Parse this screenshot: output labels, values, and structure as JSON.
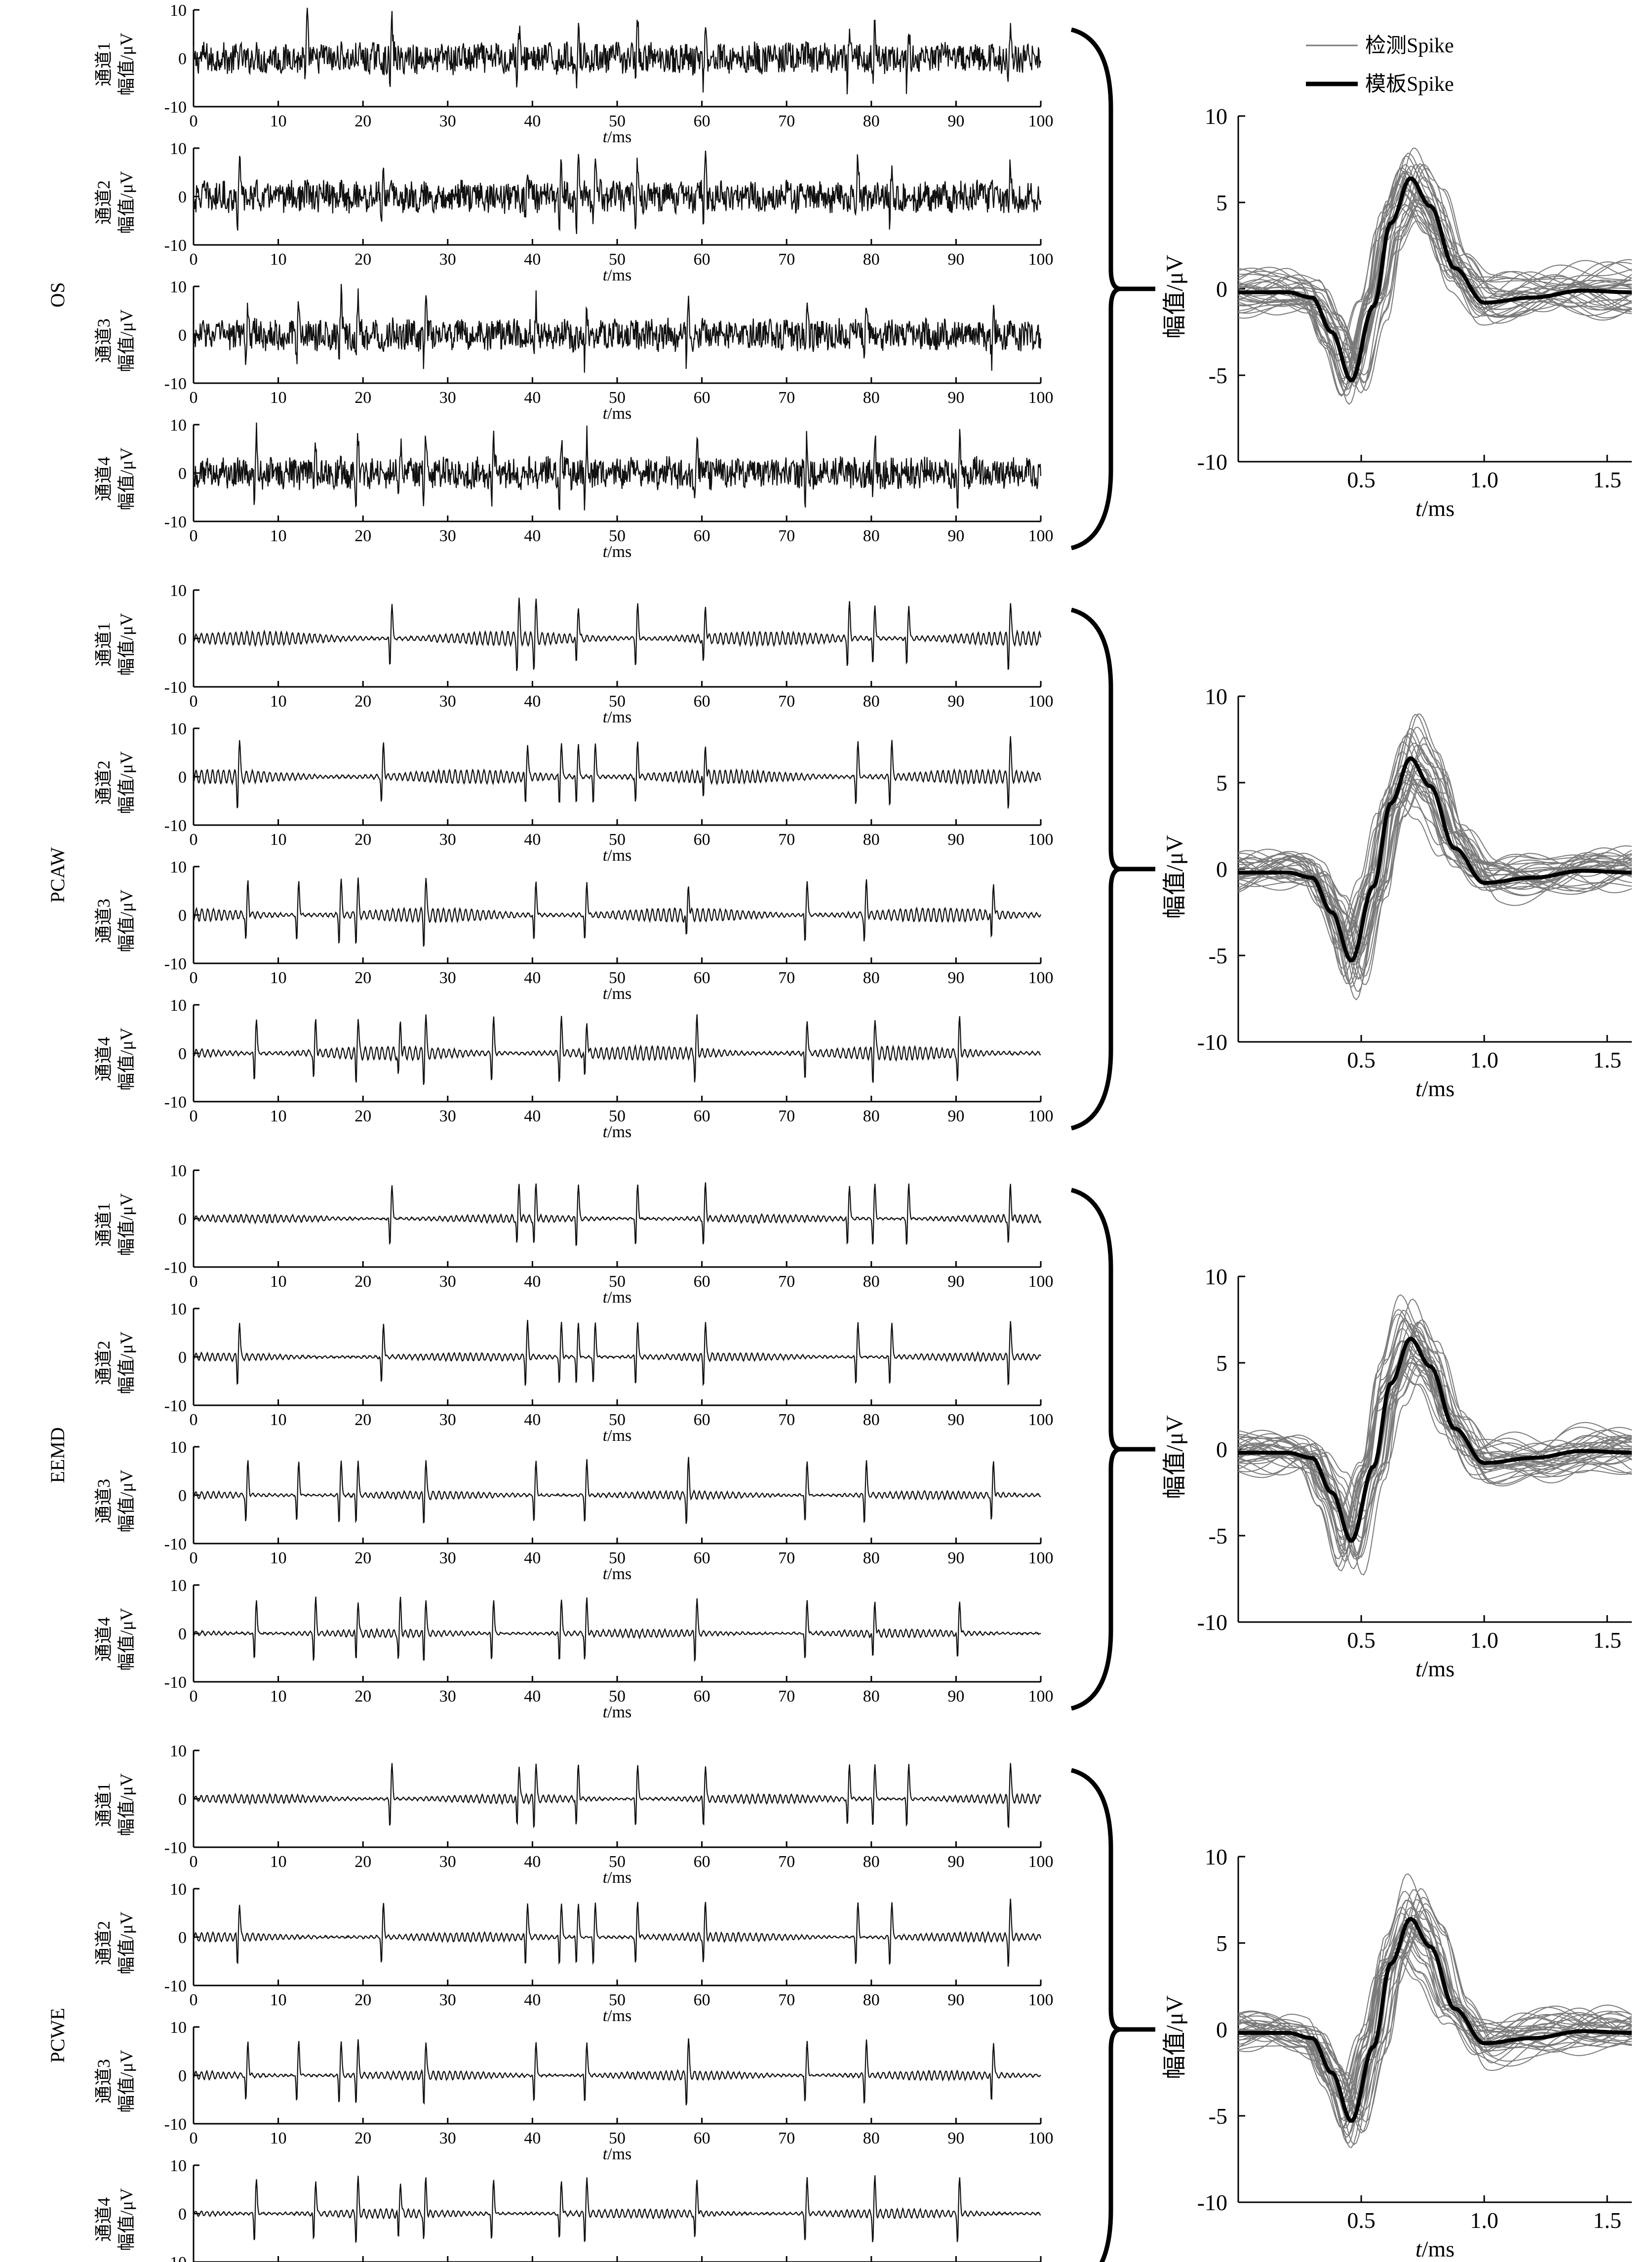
{
  "figure": {
    "legend": {
      "detected_label": "检测Spike",
      "template_label": "模板Spike"
    },
    "x_unit": "/ms",
    "x_symbol": "t",
    "signal_ylabel": "幅值/μV",
    "spike_ylabel": "幅值/μV",
    "colors": {
      "signal": "#111111",
      "detected": "#7a7a7a",
      "template": "#000000",
      "axis": "#000000"
    }
  },
  "chart_data": [
    {
      "type": "line",
      "method": "OS",
      "signal_panels": {
        "x_range": [
          0,
          100
        ],
        "y_range": [
          -10,
          10
        ],
        "x_ticks": [
          0,
          10,
          20,
          30,
          40,
          50,
          60,
          70,
          80,
          90,
          100
        ],
        "y_ticks": [
          10,
          0,
          -10
        ],
        "channels": [
          "通道1",
          "通道2",
          "通道3",
          "通道4"
        ],
        "noise_amplitude_uv": 3.0,
        "spike_times_ms": [
          [
            13,
            23,
            38,
            45,
            52,
            60,
            77,
            80,
            84,
            96
          ],
          [
            5,
            22,
            39,
            43,
            45,
            47,
            52,
            60,
            78,
            82,
            96
          ],
          [
            6,
            12,
            17,
            19,
            27,
            40,
            46,
            58,
            72,
            79,
            94
          ],
          [
            7,
            14,
            19,
            24,
            27,
            35,
            43,
            46,
            59,
            72,
            80,
            90
          ]
        ]
      },
      "spike_panel": {
        "x_range": [
          0,
          1.6
        ],
        "y_range": [
          -10,
          10
        ],
        "x_ticks": [
          0.5,
          1.0,
          1.5
        ],
        "y_ticks": [
          10,
          5,
          0,
          -5,
          -10
        ],
        "template": {
          "x": [
            0,
            0.2,
            0.3,
            0.38,
            0.46,
            0.55,
            0.62,
            0.7,
            0.78,
            0.88,
            1.0,
            1.2,
            1.4,
            1.6
          ],
          "y": [
            -0.2,
            -0.2,
            -0.5,
            -2.5,
            -5.3,
            -1.0,
            3.8,
            6.4,
            4.8,
            1.2,
            -0.8,
            -0.5,
            -0.1,
            -0.2
          ]
        },
        "detected_count": 30,
        "detected_spread_uv": 2.0
      }
    },
    {
      "type": "line",
      "method": "PCAW",
      "signal_panels": {
        "x_range": [
          0,
          100
        ],
        "y_range": [
          -10,
          10
        ],
        "x_ticks": [
          0,
          10,
          20,
          30,
          40,
          50,
          60,
          70,
          80,
          90,
          100
        ],
        "y_ticks": [
          10,
          0,
          -10
        ],
        "channels": [
          "通道1",
          "通道2",
          "通道3",
          "通道4"
        ],
        "noise_amplitude_uv": 1.4,
        "spike_times_ms": [
          [
            23,
            38,
            40,
            45,
            52,
            60,
            77,
            80,
            84,
            96
          ],
          [
            5,
            22,
            39,
            43,
            45,
            47,
            52,
            60,
            78,
            82,
            96
          ],
          [
            6,
            12,
            17,
            19,
            27,
            40,
            46,
            58,
            72,
            79,
            94
          ],
          [
            7,
            14,
            19,
            24,
            27,
            35,
            43,
            46,
            59,
            72,
            80,
            90
          ]
        ]
      },
      "spike_panel": {
        "x_range": [
          0,
          1.6
        ],
        "y_range": [
          -10,
          10
        ],
        "x_ticks": [
          0.5,
          1.0,
          1.5
        ],
        "y_ticks": [
          10,
          5,
          0,
          -5,
          -10
        ],
        "template": {
          "x": [
            0,
            0.2,
            0.3,
            0.38,
            0.46,
            0.55,
            0.62,
            0.7,
            0.78,
            0.88,
            1.0,
            1.2,
            1.4,
            1.6
          ],
          "y": [
            -0.2,
            -0.2,
            -0.5,
            -2.5,
            -5.3,
            -1.0,
            3.8,
            6.4,
            4.8,
            1.2,
            -0.8,
            -0.5,
            -0.1,
            -0.2
          ]
        },
        "detected_count": 30,
        "detected_spread_uv": 1.6
      }
    },
    {
      "type": "line",
      "method": "EEMD",
      "signal_panels": {
        "x_range": [
          0,
          100
        ],
        "y_range": [
          -10,
          10
        ],
        "x_ticks": [
          0,
          10,
          20,
          30,
          40,
          50,
          60,
          70,
          80,
          90,
          100
        ],
        "y_ticks": [
          10,
          0,
          -10
        ],
        "channels": [
          "通道1",
          "通道2",
          "通道3",
          "通道4"
        ],
        "noise_amplitude_uv": 0.8,
        "spike_times_ms": [
          [
            23,
            38,
            40,
            45,
            52,
            60,
            77,
            80,
            84,
            96
          ],
          [
            5,
            22,
            39,
            43,
            45,
            47,
            52,
            60,
            78,
            82,
            96
          ],
          [
            6,
            12,
            17,
            19,
            27,
            40,
            46,
            58,
            72,
            79,
            94
          ],
          [
            7,
            14,
            19,
            24,
            27,
            35,
            43,
            46,
            59,
            72,
            80,
            90
          ]
        ]
      },
      "spike_panel": {
        "x_range": [
          0,
          1.6
        ],
        "y_range": [
          -10,
          10
        ],
        "x_ticks": [
          0.5,
          1.0,
          1.5
        ],
        "y_ticks": [
          10,
          5,
          0,
          -5,
          -10
        ],
        "template": {
          "x": [
            0,
            0.2,
            0.3,
            0.38,
            0.46,
            0.55,
            0.62,
            0.7,
            0.78,
            0.88,
            1.0,
            1.2,
            1.4,
            1.6
          ],
          "y": [
            -0.2,
            -0.2,
            -0.5,
            -2.5,
            -5.3,
            -1.0,
            3.8,
            6.4,
            4.8,
            1.2,
            -0.8,
            -0.5,
            -0.1,
            -0.2
          ]
        },
        "detected_count": 30,
        "detected_spread_uv": 1.8
      }
    },
    {
      "type": "line",
      "method": "PCWE",
      "signal_panels": {
        "x_range": [
          0,
          100
        ],
        "y_range": [
          -10,
          10
        ],
        "x_ticks": [
          0,
          10,
          20,
          30,
          40,
          50,
          60,
          70,
          80,
          90,
          100
        ],
        "y_ticks": [
          10,
          0,
          -10
        ],
        "channels": [
          "通道1",
          "通道2",
          "通道3",
          "通道4"
        ],
        "noise_amplitude_uv": 0.9,
        "spike_times_ms": [
          [
            23,
            38,
            40,
            45,
            52,
            60,
            77,
            80,
            84,
            96
          ],
          [
            5,
            22,
            39,
            43,
            45,
            47,
            52,
            60,
            78,
            82,
            96
          ],
          [
            6,
            12,
            17,
            19,
            27,
            40,
            46,
            58,
            72,
            79,
            94
          ],
          [
            7,
            14,
            19,
            24,
            27,
            35,
            43,
            46,
            59,
            72,
            80,
            90
          ]
        ]
      },
      "spike_panel": {
        "x_range": [
          0,
          1.6
        ],
        "y_range": [
          -10,
          10
        ],
        "x_ticks": [
          0.5,
          1.0,
          1.5
        ],
        "y_ticks": [
          10,
          5,
          0,
          -5,
          -10
        ],
        "template": {
          "x": [
            0,
            0.2,
            0.3,
            0.38,
            0.46,
            0.55,
            0.62,
            0.7,
            0.78,
            0.88,
            1.0,
            1.2,
            1.4,
            1.6
          ],
          "y": [
            -0.2,
            -0.2,
            -0.5,
            -2.5,
            -5.3,
            -1.0,
            3.8,
            6.4,
            4.8,
            1.2,
            -0.8,
            -0.5,
            -0.1,
            -0.2
          ]
        },
        "detected_count": 30,
        "detected_spread_uv": 1.7
      }
    }
  ]
}
